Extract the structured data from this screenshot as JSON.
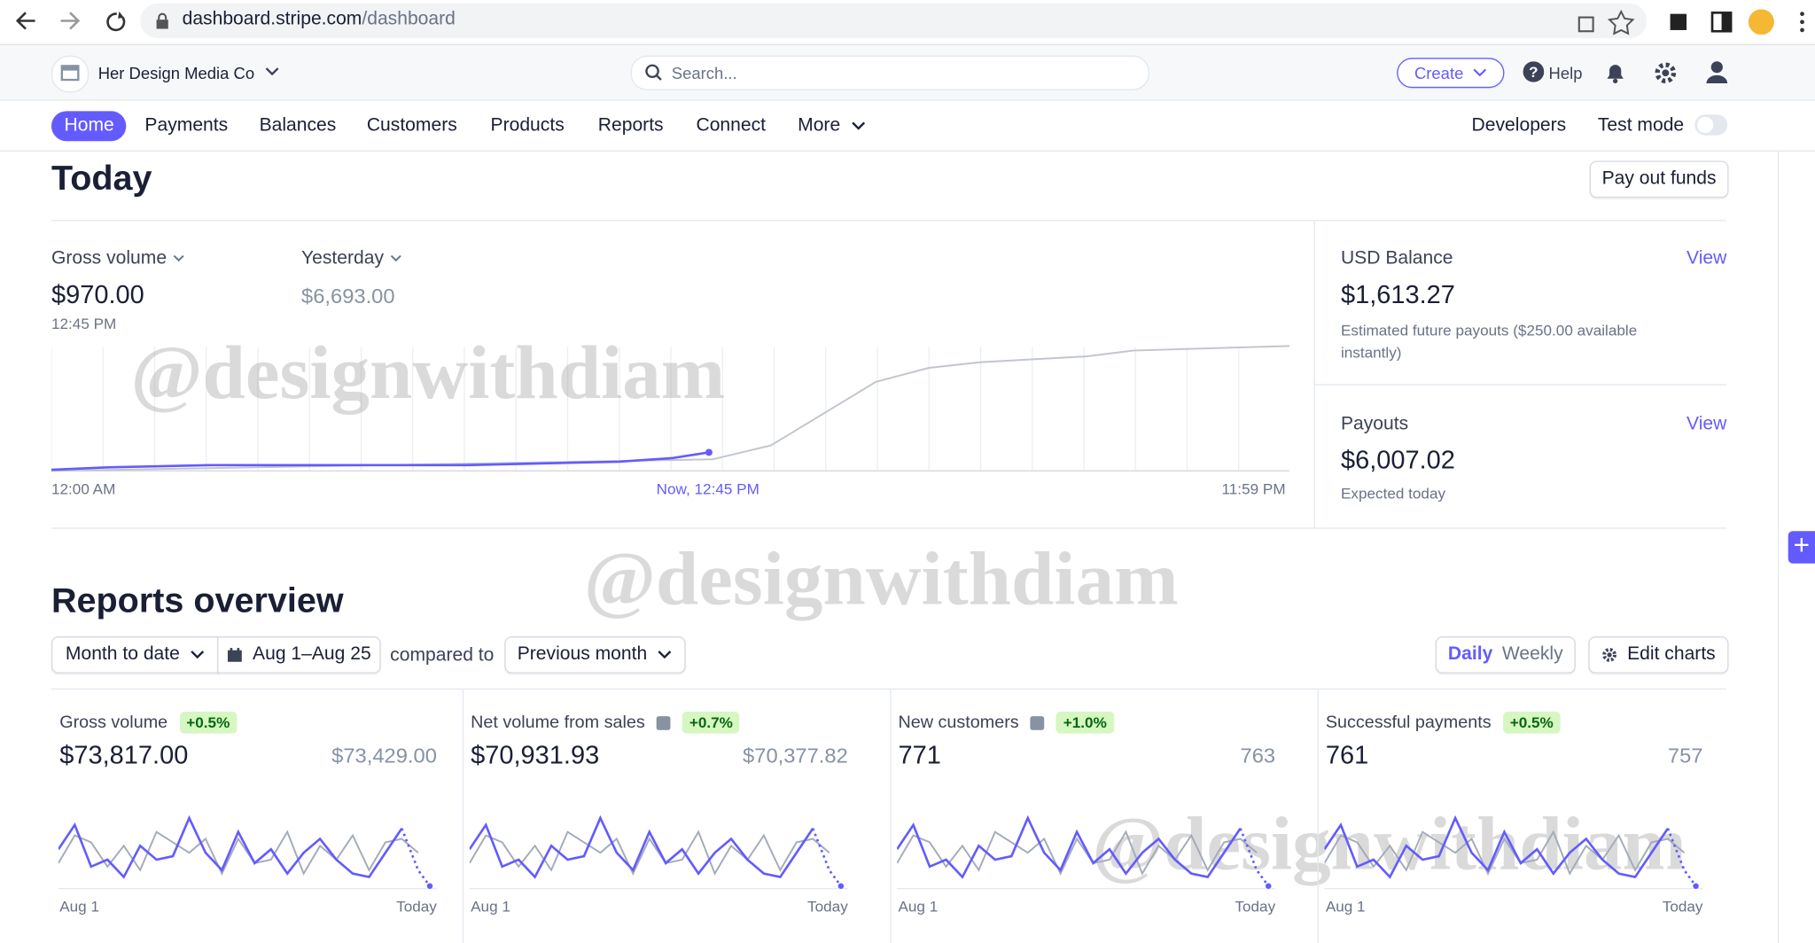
{
  "browser": {
    "domain": "dashboard.stripe.com",
    "path": "/dashboard"
  },
  "header": {
    "account": "Her Design Media Co",
    "search": "Search...",
    "create": "Create",
    "help": "Help"
  },
  "nav": {
    "items": [
      "Home",
      "Payments",
      "Balances",
      "Customers",
      "Products",
      "Reports",
      "Connect",
      "More"
    ],
    "developers": "Developers",
    "test_mode": "Test mode"
  },
  "today": {
    "title": "Today",
    "payout_button": "Pay out funds",
    "gross_label": "Gross volume",
    "gross_value": "$970.00",
    "gross_time": "12:45 PM",
    "yesterday_label": "Yesterday",
    "yesterday_value": "$6,693.00",
    "axis": [
      "12:00 AM",
      "Now, 12:45 PM",
      "11:59 PM"
    ]
  },
  "balance": {
    "label": "USD Balance",
    "view": "View",
    "value": "$1,613.27",
    "note": "Estimated future payouts ($250.00 available instantly)"
  },
  "payouts": {
    "label": "Payouts",
    "view": "View",
    "value": "$6,007.02",
    "note": "Expected today"
  },
  "reports": {
    "title": "Reports overview",
    "range": "Month to date",
    "dates": "Aug 1–Aug 25",
    "compared": "compared to",
    "previous": "Previous month",
    "daily": "Daily",
    "weekly": "Weekly",
    "edit": "Edit charts",
    "cards": [
      {
        "title": "Gross volume",
        "change": "+0.5%",
        "value": "$73,817.00",
        "previous": "$73,429.00",
        "start": "Aug 1",
        "end": "Today"
      },
      {
        "title": "Net volume from sales",
        "change": "+0.7%",
        "value": "$70,931.93",
        "previous": "$70,377.82",
        "start": "Aug 1",
        "end": "Today"
      },
      {
        "title": "New customers",
        "change": "+1.0%",
        "value": "771",
        "previous": "763",
        "start": "Aug 1",
        "end": "Today"
      },
      {
        "title": "Successful payments",
        "change": "+0.5%",
        "value": "761",
        "previous": "757",
        "start": "Aug 1",
        "end": "Today"
      }
    ]
  },
  "watermark": "@designwithdiam"
}
